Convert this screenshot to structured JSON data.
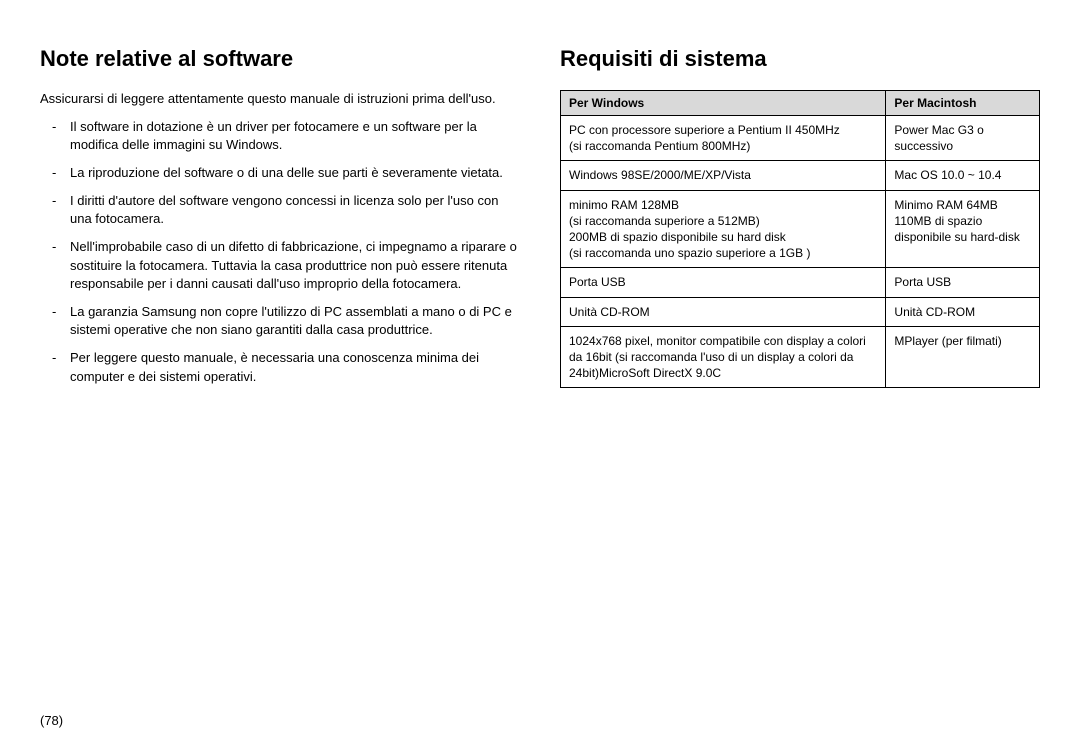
{
  "left": {
    "heading": "Note relative al software",
    "intro": "Assicurarsi di leggere attentamente questo manuale di istruzioni prima dell'uso.",
    "bullets": [
      "Il software in dotazione è un driver per fotocamere e un software per la modifica delle immagini su Windows.",
      "La riproduzione del software o di una delle sue parti è severamente vietata.",
      "I diritti d'autore del software vengono concessi in licenza solo per l'uso con una fotocamera.",
      "Nell'improbabile caso di un difetto di fabbricazione, ci impegnamo a riparare o sostituire la fotocamera.  Tuttavia la casa produttrice non può essere ritenuta responsabile per i danni causati dall'uso improprio della fotocamera.",
      "La garanzia Samsung non copre l'utilizzo di PC assemblati a mano o di PC e sistemi operative che non siano garantiti dalla casa produttrice.",
      "Per leggere questo manuale, è necessaria una conoscenza minima dei computer e dei sistemi operativi."
    ]
  },
  "right": {
    "heading": "Requisiti di sistema",
    "table": {
      "headers": [
        "Per Windows",
        "Per  Macintosh"
      ],
      "rows": [
        [
          "PC  con processore superiore a   Pentium  II 450MHz\n(si raccomanda Pentium  800MHz)",
          "Power  Mac  G3  o successivo"
        ],
        [
          "Windows  98SE/2000/ME/XP/Vista",
          "Mac  OS  10.0  ~  10.4"
        ],
        [
          "minimo RAM 128MB\n(si raccomanda superiore a 512MB)\n200MB di spazio disponibile su hard disk\n(si raccomanda uno spazio superiore a 1GB )",
          "Minimo RAM  64MB 110MB di spazio disponibile su hard-disk"
        ],
        [
          "Porta USB",
          "Porta USB"
        ],
        [
          "Unità CD-ROM",
          "Unità CD-ROM"
        ],
        [
          "1024x768  pixel,  monitor compatibile con display a colori da 16bit (si raccomanda l'uso di un display a colori da 24bit)MicroSoft  DirectX  9.0C",
          "MPlayer  (per filmati)"
        ]
      ]
    }
  },
  "pageNumber": "(78)"
}
